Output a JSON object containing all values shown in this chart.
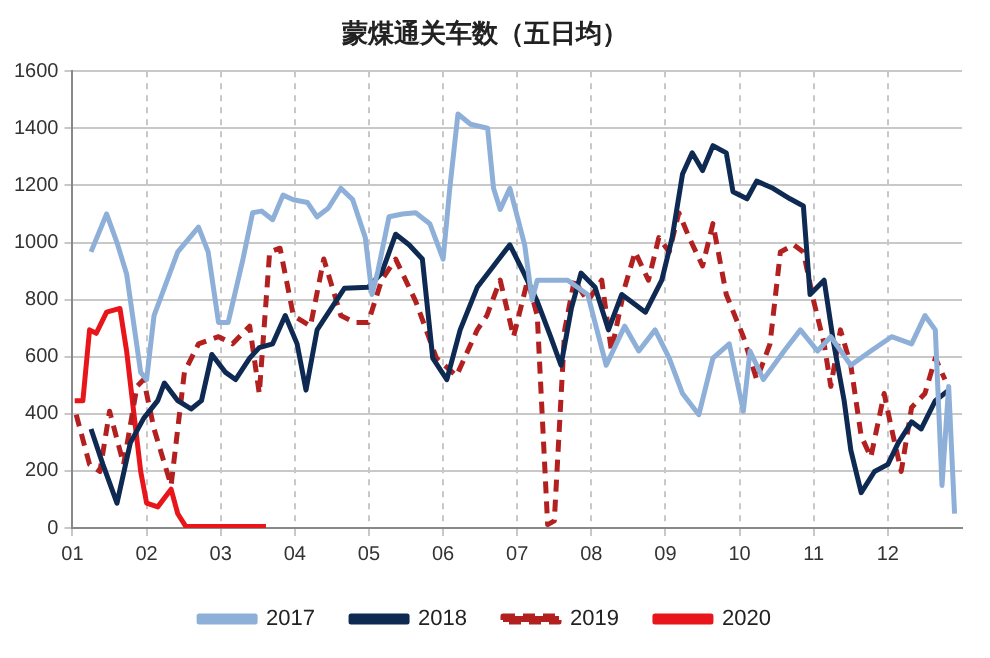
{
  "chart_data": {
    "type": "line",
    "title": "蒙煤通关车数（五日均）",
    "xlim": [
      1,
      13
    ],
    "xticks": [
      {
        "value": 1,
        "label": "01"
      },
      {
        "value": 2,
        "label": "02"
      },
      {
        "value": 3,
        "label": "03"
      },
      {
        "value": 4,
        "label": "04"
      },
      {
        "value": 5,
        "label": "05"
      },
      {
        "value": 6,
        "label": "06"
      },
      {
        "value": 7,
        "label": "07"
      },
      {
        "value": 8,
        "label": "08"
      },
      {
        "value": 9,
        "label": "09"
      },
      {
        "value": 10,
        "label": "10"
      },
      {
        "value": 11,
        "label": "11"
      },
      {
        "value": 12,
        "label": "12"
      }
    ],
    "ylim": [
      0,
      1600
    ],
    "yticks": [
      0,
      200,
      400,
      600,
      800,
      1000,
      1200,
      1400,
      1600
    ],
    "grid": true,
    "legend": "bottom",
    "marker": "none",
    "series": [
      {
        "name": "2017",
        "color": "#8eb0d8",
        "line_style": "solid",
        "x": [
          1.25,
          1.46,
          1.6,
          1.73,
          1.92,
          2.0,
          2.1,
          2.42,
          2.7,
          2.83,
          2.97,
          3.1,
          3.3,
          3.43,
          3.55,
          3.7,
          3.84,
          3.98,
          4.17,
          4.3,
          4.45,
          4.62,
          4.78,
          4.95,
          5.04,
          5.12,
          5.27,
          5.45,
          5.63,
          5.82,
          6.0,
          6.09,
          6.2,
          6.37,
          6.6,
          6.68,
          6.77,
          6.9,
          7.1,
          7.2,
          7.27,
          7.68,
          7.95,
          8.2,
          8.45,
          8.64,
          8.86,
          9.05,
          9.23,
          9.45,
          9.64,
          9.86,
          10.05,
          10.14,
          10.32,
          10.6,
          10.82,
          11.05,
          11.23,
          11.5,
          11.77,
          12.05,
          12.32,
          12.5,
          12.64,
          12.73,
          12.82,
          12.9
        ],
        "values": [
          967,
          1100,
          1000,
          890,
          545,
          520,
          744,
          967,
          1054,
          967,
          720,
          720,
          942,
          1104,
          1110,
          1080,
          1166,
          1150,
          1140,
          1090,
          1120,
          1190,
          1150,
          1017,
          818,
          900,
          1090,
          1100,
          1104,
          1066,
          942,
          1190,
          1450,
          1414,
          1400,
          1190,
          1116,
          1190,
          992,
          800,
          868,
          868,
          818,
          570,
          707,
          620,
          694,
          595,
          471,
          397,
          595,
          645,
          409,
          620,
          520,
          620,
          694,
          620,
          670,
          570,
          620,
          670,
          645,
          744,
          694,
          149,
          496,
          50
        ]
      },
      {
        "name": "2018",
        "color": "#0e2a52",
        "line_style": "solid",
        "x": [
          1.25,
          1.41,
          1.6,
          1.78,
          1.96,
          2.15,
          2.24,
          2.42,
          2.6,
          2.74,
          2.88,
          3.06,
          3.2,
          3.39,
          3.52,
          3.7,
          3.87,
          4.03,
          4.15,
          4.3,
          4.49,
          4.67,
          4.99,
          5.17,
          5.36,
          5.54,
          5.72,
          5.86,
          6.05,
          6.23,
          6.46,
          6.68,
          6.9,
          7.09,
          7.27,
          7.45,
          7.59,
          7.73,
          7.86,
          8.05,
          8.23,
          8.41,
          8.73,
          8.95,
          9.09,
          9.23,
          9.36,
          9.5,
          9.64,
          9.82,
          9.91,
          10.1,
          10.23,
          10.45,
          10.68,
          10.86,
          10.95,
          11.14,
          11.27,
          11.41,
          11.5,
          11.64,
          11.82,
          12.0,
          12.14,
          12.32,
          12.45,
          12.64,
          12.82
        ],
        "values": [
          347,
          223,
          87,
          298,
          384,
          446,
          508,
          446,
          417,
          446,
          608,
          546,
          520,
          595,
          632,
          645,
          744,
          645,
          483,
          694,
          769,
          840,
          843,
          893,
          1029,
          992,
          942,
          595,
          520,
          694,
          843,
          918,
          992,
          893,
          794,
          670,
          570,
          769,
          893,
          843,
          694,
          818,
          756,
          868,
          1017,
          1240,
          1314,
          1252,
          1339,
          1314,
          1178,
          1153,
          1215,
          1190,
          1153,
          1128,
          818,
          868,
          645,
          446,
          273,
          124,
          198,
          223,
          298,
          372,
          347,
          446,
          483
        ]
      },
      {
        "name": "2019",
        "color": "#b2201f",
        "line_style": "dashed",
        "x": [
          1.05,
          1.23,
          1.37,
          1.5,
          1.69,
          1.87,
          1.96,
          2.1,
          2.33,
          2.51,
          2.7,
          2.97,
          3.16,
          3.39,
          3.52,
          3.66,
          3.8,
          3.98,
          4.21,
          4.39,
          4.62,
          4.81,
          4.99,
          5.17,
          5.36,
          5.63,
          5.91,
          6.18,
          6.46,
          6.59,
          6.77,
          6.95,
          7.14,
          7.27,
          7.41,
          7.5,
          7.64,
          7.77,
          7.95,
          8.14,
          8.27,
          8.45,
          8.59,
          8.77,
          8.91,
          9.05,
          9.18,
          9.32,
          9.5,
          9.64,
          9.82,
          10.05,
          10.23,
          10.41,
          10.55,
          10.73,
          10.86,
          11.0,
          11.14,
          11.23,
          11.36,
          11.5,
          11.64,
          11.77,
          11.95,
          12.05,
          12.18,
          12.32,
          12.5,
          12.64,
          12.77
        ],
        "values": [
          397,
          223,
          198,
          409,
          223,
          496,
          520,
          347,
          149,
          546,
          645,
          670,
          645,
          707,
          471,
          967,
          980,
          744,
          707,
          942,
          744,
          720,
          720,
          868,
          942,
          794,
          595,
          533,
          694,
          744,
          868,
          670,
          868,
          744,
          12,
          25,
          694,
          868,
          794,
          868,
          620,
          843,
          967,
          868,
          1017,
          967,
          1104,
          1017,
          918,
          1066,
          818,
          670,
          520,
          645,
          967,
          992,
          967,
          794,
          645,
          496,
          694,
          570,
          322,
          248,
          471,
          347,
          198,
          422,
          471,
          595,
          520
        ]
      },
      {
        "name": "2020",
        "color": "#e8161b",
        "line_style": "solid",
        "x": [
          1.03,
          1.14,
          1.23,
          1.32,
          1.46,
          1.64,
          1.73,
          1.83,
          1.92,
          2.0,
          2.15,
          2.33,
          2.42,
          2.53,
          3.61
        ],
        "values": [
          446,
          446,
          694,
          682,
          756,
          769,
          620,
          397,
          198,
          87,
          74,
          136,
          50,
          5,
          5
        ]
      }
    ]
  }
}
